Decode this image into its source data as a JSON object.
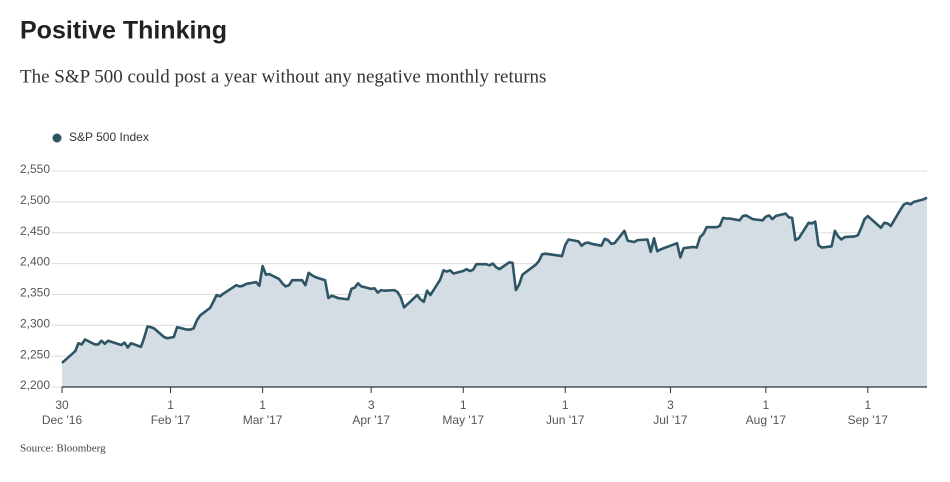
{
  "chart_data": {
    "type": "area",
    "title": "Positive Thinking",
    "subtitle": "The S&P 500 could post a year without any negative monthly returns",
    "source": "Source: Bloomberg",
    "x": [
      "2016-12-30",
      "2017-01-03",
      "2017-01-04",
      "2017-01-05",
      "2017-01-06",
      "2017-01-09",
      "2017-01-10",
      "2017-01-11",
      "2017-01-12",
      "2017-01-13",
      "2017-01-17",
      "2017-01-18",
      "2017-01-19",
      "2017-01-20",
      "2017-01-23",
      "2017-01-24",
      "2017-01-25",
      "2017-01-26",
      "2017-01-27",
      "2017-01-30",
      "2017-01-31",
      "2017-02-01",
      "2017-02-02",
      "2017-02-03",
      "2017-02-06",
      "2017-02-07",
      "2017-02-08",
      "2017-02-09",
      "2017-02-10",
      "2017-02-13",
      "2017-02-14",
      "2017-02-15",
      "2017-02-16",
      "2017-02-17",
      "2017-02-21",
      "2017-02-22",
      "2017-02-23",
      "2017-02-24",
      "2017-02-27",
      "2017-02-28",
      "2017-03-01",
      "2017-03-02",
      "2017-03-03",
      "2017-03-06",
      "2017-03-07",
      "2017-03-08",
      "2017-03-09",
      "2017-03-10",
      "2017-03-13",
      "2017-03-14",
      "2017-03-15",
      "2017-03-16",
      "2017-03-17",
      "2017-03-20",
      "2017-03-21",
      "2017-03-22",
      "2017-03-23",
      "2017-03-24",
      "2017-03-27",
      "2017-03-28",
      "2017-03-29",
      "2017-03-30",
      "2017-03-31",
      "2017-04-03",
      "2017-04-04",
      "2017-04-05",
      "2017-04-06",
      "2017-04-07",
      "2017-04-10",
      "2017-04-11",
      "2017-04-12",
      "2017-04-13",
      "2017-04-17",
      "2017-04-18",
      "2017-04-19",
      "2017-04-20",
      "2017-04-21",
      "2017-04-24",
      "2017-04-25",
      "2017-04-26",
      "2017-04-27",
      "2017-04-28",
      "2017-05-01",
      "2017-05-02",
      "2017-05-03",
      "2017-05-04",
      "2017-05-05",
      "2017-05-08",
      "2017-05-09",
      "2017-05-10",
      "2017-05-11",
      "2017-05-12",
      "2017-05-15",
      "2017-05-16",
      "2017-05-17",
      "2017-05-18",
      "2017-05-19",
      "2017-05-22",
      "2017-05-23",
      "2017-05-24",
      "2017-05-25",
      "2017-05-26",
      "2017-05-30",
      "2017-05-31",
      "2017-06-01",
      "2017-06-02",
      "2017-06-05",
      "2017-06-06",
      "2017-06-07",
      "2017-06-08",
      "2017-06-09",
      "2017-06-12",
      "2017-06-13",
      "2017-06-14",
      "2017-06-15",
      "2017-06-16",
      "2017-06-19",
      "2017-06-20",
      "2017-06-21",
      "2017-06-22",
      "2017-06-23",
      "2017-06-26",
      "2017-06-27",
      "2017-06-28",
      "2017-06-29",
      "2017-06-30",
      "2017-07-03",
      "2017-07-05",
      "2017-07-06",
      "2017-07-07",
      "2017-07-10",
      "2017-07-11",
      "2017-07-12",
      "2017-07-13",
      "2017-07-14",
      "2017-07-17",
      "2017-07-18",
      "2017-07-19",
      "2017-07-20",
      "2017-07-21",
      "2017-07-24",
      "2017-07-25",
      "2017-07-26",
      "2017-07-27",
      "2017-07-28",
      "2017-07-31",
      "2017-08-01",
      "2017-08-02",
      "2017-08-03",
      "2017-08-04",
      "2017-08-07",
      "2017-08-08",
      "2017-08-09",
      "2017-08-10",
      "2017-08-11",
      "2017-08-14",
      "2017-08-15",
      "2017-08-16",
      "2017-08-17",
      "2017-08-18",
      "2017-08-21",
      "2017-08-22",
      "2017-08-23",
      "2017-08-24",
      "2017-08-25",
      "2017-08-28",
      "2017-08-29",
      "2017-08-30",
      "2017-08-31",
      "2017-09-01",
      "2017-09-05",
      "2017-09-06",
      "2017-09-07",
      "2017-09-08",
      "2017-09-11",
      "2017-09-12",
      "2017-09-13",
      "2017-09-14",
      "2017-09-15",
      "2017-09-18",
      "2017-09-19"
    ],
    "series": [
      {
        "name": "S&P 500 Index",
        "color": "#2d5566",
        "fill": "#d3dde3",
        "values": [
          2239,
          2258,
          2271,
          2269,
          2277,
          2269,
          2269,
          2275,
          2270,
          2275,
          2268,
          2272,
          2264,
          2271,
          2265,
          2280,
          2298,
          2297,
          2295,
          2281,
          2279,
          2280,
          2281,
          2297,
          2293,
          2293,
          2295,
          2308,
          2316,
          2328,
          2338,
          2349,
          2347,
          2351,
          2365,
          2363,
          2364,
          2367,
          2370,
          2364,
          2396,
          2382,
          2383,
          2375,
          2368,
          2363,
          2365,
          2373,
          2373,
          2365,
          2385,
          2381,
          2378,
          2373,
          2344,
          2348,
          2346,
          2344,
          2342,
          2359,
          2361,
          2368,
          2363,
          2359,
          2360,
          2353,
          2357,
          2356,
          2357,
          2354,
          2345,
          2329,
          2349,
          2342,
          2338,
          2356,
          2349,
          2374,
          2389,
          2387,
          2389,
          2384,
          2388,
          2391,
          2388,
          2390,
          2399,
          2399,
          2397,
          2400,
          2394,
          2391,
          2402,
          2401,
          2357,
          2366,
          2382,
          2394,
          2398,
          2404,
          2415,
          2416,
          2413,
          2412,
          2430,
          2439,
          2436,
          2429,
          2433,
          2434,
          2432,
          2429,
          2440,
          2438,
          2432,
          2433,
          2453,
          2437,
          2436,
          2435,
          2438,
          2439,
          2419,
          2441,
          2420,
          2423,
          2429,
          2433,
          2410,
          2425,
          2427,
          2426,
          2443,
          2448,
          2459,
          2459,
          2461,
          2474,
          2473,
          2473,
          2470,
          2477,
          2478,
          2475,
          2472,
          2470,
          2476,
          2478,
          2472,
          2477,
          2481,
          2475,
          2474,
          2438,
          2441,
          2466,
          2465,
          2468,
          2430,
          2426,
          2428,
          2453,
          2444,
          2439,
          2443,
          2444,
          2446,
          2458,
          2472,
          2477,
          2458,
          2466,
          2465,
          2461,
          2488,
          2496,
          2498,
          2496,
          2500,
          2504,
          2507
        ]
      }
    ],
    "xlim": [
      "2016-12-30",
      "2017-09-19"
    ],
    "xticks": [
      {
        "value": "2016-12-30",
        "label": [
          "30",
          "Dec '16"
        ]
      },
      {
        "value": "2017-02-01",
        "label": [
          "1",
          "Feb '17"
        ]
      },
      {
        "value": "2017-03-01",
        "label": [
          "1",
          "Mar '17"
        ]
      },
      {
        "value": "2017-04-03",
        "label": [
          "3",
          "Apr '17"
        ]
      },
      {
        "value": "2017-05-01",
        "label": [
          "1",
          "May '17"
        ]
      },
      {
        "value": "2017-06-01",
        "label": [
          "1",
          "Jun '17"
        ]
      },
      {
        "value": "2017-07-03",
        "label": [
          "3",
          "Jul '17"
        ]
      },
      {
        "value": "2017-08-01",
        "label": [
          "1",
          "Aug '17"
        ]
      },
      {
        "value": "2017-09-01",
        "label": [
          "1",
          "Sep '17"
        ]
      }
    ],
    "ylim": [
      2200,
      2550
    ],
    "yticks": [
      {
        "value": 2200,
        "label": "2,200"
      },
      {
        "value": 2250,
        "label": "2,250"
      },
      {
        "value": 2300,
        "label": "2,300"
      },
      {
        "value": 2350,
        "label": "2,350"
      },
      {
        "value": 2400,
        "label": "2,400"
      },
      {
        "value": 2450,
        "label": "2,450"
      },
      {
        "value": 2500,
        "label": "2,500"
      },
      {
        "value": 2550,
        "label": "2,550"
      }
    ],
    "grid": true
  }
}
